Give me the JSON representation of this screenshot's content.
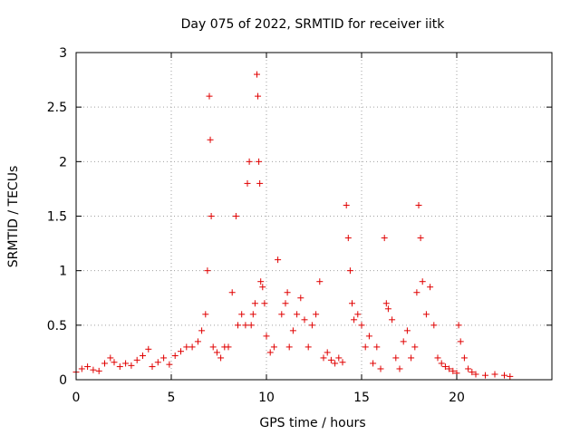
{
  "chart_data": {
    "type": "scatter",
    "title": "Day 075 of 2022, SRMTID for receiver iitk",
    "xlabel": "GPS time / hours",
    "ylabel": "SRMTID / TECUs",
    "xlim": [
      0,
      25
    ],
    "ylim": [
      0,
      3
    ],
    "x_ticks": [
      "0",
      "5",
      "10",
      "15",
      "20"
    ],
    "y_ticks": [
      "0",
      "0.5",
      "1",
      "1.5",
      "2",
      "2.5",
      "3"
    ],
    "grid": true,
    "marker": "+",
    "series": [
      {
        "name": "SRMTID",
        "color": "#e00000",
        "x": [
          0.0,
          0.3,
          0.6,
          0.9,
          1.2,
          1.5,
          1.8,
          2.0,
          2.3,
          2.6,
          2.9,
          3.2,
          3.5,
          3.8,
          4.0,
          4.3,
          4.6,
          4.9,
          5.2,
          5.5,
          5.8,
          6.1,
          6.4,
          6.6,
          6.8,
          6.9,
          7.0,
          7.05,
          7.1,
          7.2,
          7.4,
          7.6,
          7.8,
          8.0,
          8.2,
          8.4,
          8.5,
          8.7,
          8.9,
          9.0,
          9.1,
          9.2,
          9.3,
          9.4,
          9.5,
          9.55,
          9.6,
          9.65,
          9.7,
          9.8,
          9.9,
          10.0,
          10.2,
          10.4,
          10.6,
          10.8,
          11.0,
          11.1,
          11.2,
          11.4,
          11.6,
          11.8,
          12.0,
          12.2,
          12.4,
          12.6,
          12.8,
          13.0,
          13.2,
          13.4,
          13.6,
          13.8,
          14.0,
          14.2,
          14.3,
          14.4,
          14.5,
          14.6,
          14.8,
          15.0,
          15.2,
          15.4,
          15.6,
          15.8,
          16.0,
          16.2,
          16.3,
          16.4,
          16.6,
          16.8,
          17.0,
          17.2,
          17.4,
          17.6,
          17.8,
          17.9,
          18.0,
          18.1,
          18.2,
          18.4,
          18.6,
          18.8,
          19.0,
          19.2,
          19.4,
          19.6,
          19.8,
          20.0,
          20.1,
          20.2,
          20.4,
          20.6,
          20.8,
          21.0,
          21.5,
          22.0,
          22.5,
          22.8
        ],
        "values": [
          0.07,
          0.1,
          0.12,
          0.09,
          0.08,
          0.15,
          0.2,
          0.16,
          0.12,
          0.15,
          0.13,
          0.18,
          0.22,
          0.28,
          0.12,
          0.16,
          0.2,
          0.14,
          0.22,
          0.26,
          0.3,
          0.3,
          0.35,
          0.45,
          0.6,
          1.0,
          2.6,
          2.2,
          1.5,
          0.3,
          0.25,
          0.2,
          0.3,
          0.3,
          0.8,
          1.5,
          0.5,
          0.6,
          0.5,
          1.8,
          2.0,
          0.5,
          0.6,
          0.7,
          2.8,
          2.6,
          2.0,
          1.8,
          0.9,
          0.85,
          0.7,
          0.4,
          0.25,
          0.3,
          1.1,
          0.6,
          0.7,
          0.8,
          0.3,
          0.45,
          0.6,
          0.75,
          0.55,
          0.3,
          0.5,
          0.6,
          0.9,
          0.2,
          0.25,
          0.18,
          0.15,
          0.2,
          0.16,
          1.6,
          1.3,
          1.0,
          0.7,
          0.55,
          0.6,
          0.5,
          0.3,
          0.4,
          0.15,
          0.3,
          0.1,
          1.3,
          0.7,
          0.65,
          0.55,
          0.2,
          0.1,
          0.35,
          0.45,
          0.2,
          0.3,
          0.8,
          1.6,
          1.3,
          0.9,
          0.6,
          0.85,
          0.5,
          0.2,
          0.15,
          0.12,
          0.1,
          0.08,
          0.06,
          0.5,
          0.35,
          0.2,
          0.1,
          0.07,
          0.05,
          0.04,
          0.05,
          0.04,
          0.03
        ]
      }
    ]
  }
}
